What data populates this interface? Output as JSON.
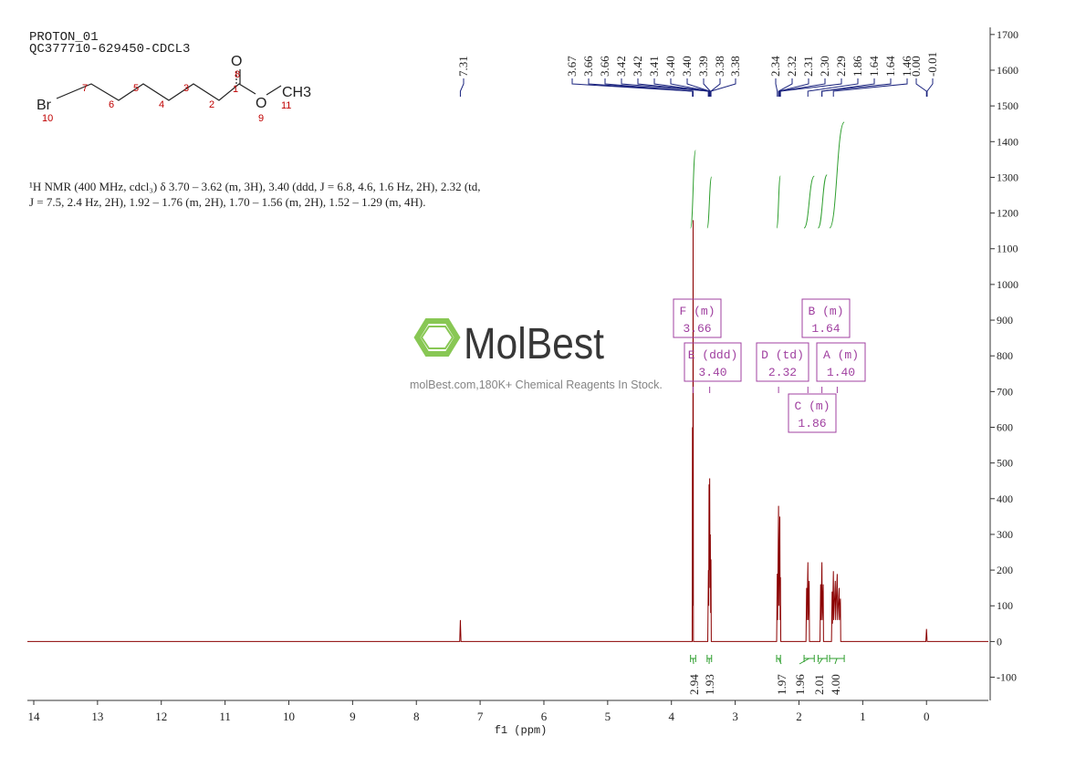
{
  "header": {
    "title": "PROTON_01",
    "sample": "QC377710-629450-CDCL3"
  },
  "structure": {
    "atoms": [
      "Br",
      "10",
      "7",
      "6",
      "5",
      "4",
      "3",
      "2",
      "1",
      "O",
      "8",
      "O",
      "9",
      "CH3",
      "11"
    ]
  },
  "description": [
    "¹H NMR (400 MHz, cdcl₃) δ 3.70 – 3.62 (m, 3H), 3.40 (ddd, J = 6.8, 4.6, 1.6 Hz, 2H), 2.32 (td,",
    "J = 7.5, 2.4 Hz, 2H), 1.92 – 1.76 (m, 2H), 1.70 – 1.56 (m, 2H), 1.52 – 1.29 (m, 4H)."
  ],
  "watermark": {
    "brand": "MolBest",
    "tagline": "molBest.com,180K+ Chemical Reagents In Stock."
  },
  "chart_data": {
    "type": "line",
    "x_label": "f1 (ppm)",
    "xlim": [
      14.1,
      -0.97
    ],
    "ylim": [
      -165,
      1720
    ],
    "xticks": [
      14,
      13,
      12,
      11,
      10,
      9,
      8,
      7,
      6,
      5,
      4,
      3,
      2,
      1,
      0
    ],
    "yticks": [
      -100,
      0,
      100,
      200,
      300,
      400,
      500,
      600,
      700,
      800,
      900,
      1000,
      1100,
      1200,
      1300,
      1400,
      1500,
      1600,
      1700
    ],
    "series": [
      {
        "color": "#8b0000",
        "x": [
          14.1,
          7.32,
          7.31,
          7.3,
          3.675,
          3.67,
          3.665,
          3.66,
          3.655,
          3.43,
          3.42,
          3.415,
          3.41,
          3.405,
          3.4,
          3.395,
          3.39,
          3.385,
          3.38,
          3.375,
          2.35,
          2.34,
          2.335,
          2.32,
          2.315,
          2.3,
          2.295,
          2.29,
          2.285,
          1.89,
          1.88,
          1.875,
          1.86,
          1.855,
          1.84,
          1.835,
          1.67,
          1.66,
          1.655,
          1.64,
          1.635,
          1.62,
          1.615,
          1.49,
          1.48,
          1.475,
          1.46,
          1.455,
          1.43,
          1.425,
          1.4,
          1.395,
          1.37,
          1.365,
          1.35,
          1.345,
          0.01,
          0,
          -0.01,
          -0.97
        ],
        "values": [
          0,
          0,
          60,
          0,
          0,
          600,
          100,
          1180,
          0,
          0,
          200,
          100,
          440,
          200,
          457,
          150,
          300,
          80,
          230,
          0,
          0,
          190,
          60,
          380,
          100,
          350,
          60,
          180,
          0,
          0,
          150,
          60,
          222,
          60,
          170,
          0,
          0,
          160,
          60,
          222,
          60,
          160,
          0,
          0,
          140,
          50,
          197,
          60,
          170,
          60,
          189,
          60,
          150,
          60,
          120,
          0,
          0,
          35,
          0,
          0
        ]
      }
    ],
    "peak_labels": [
      7.31,
      3.67,
      3.66,
      3.66,
      3.42,
      3.42,
      3.41,
      {
        "value": 3.4,
        "label": "3.40"
      },
      {
        "value": 3.4,
        "label": "3.40"
      },
      3.39,
      3.38,
      3.38,
      2.34,
      2.32,
      2.31,
      {
        "value": 2.3,
        "label": "2.30"
      },
      2.29,
      1.86,
      1.64,
      1.64,
      1.46,
      {
        "value": 0,
        "label": "0.00"
      },
      -0.01
    ],
    "multiplets": [
      {
        "label": "F (m)",
        "shift": 3.66
      },
      {
        "label": "E (ddd)",
        "shift": {
          "value": 3.4,
          "label": "3.40"
        }
      },
      {
        "label": "D (td)",
        "shift": 2.32
      },
      {
        "label": "A (m)",
        "shift": {
          "value": 1.4,
          "label": "1.40"
        }
      },
      {
        "label": "B (m)",
        "shift": 1.64
      },
      {
        "label": "C (m)",
        "shift": 1.86
      }
    ],
    "integrals": [
      {
        "range": [
          3.7,
          3.62
        ],
        "value": 2.94
      },
      {
        "range": [
          3.44,
          3.37
        ],
        "value": 1.93
      },
      {
        "range": [
          2.35,
          2.29
        ],
        "value": 1.97
      },
      {
        "range": [
          1.92,
          1.76
        ],
        "value": 1.96
      },
      {
        "range": [
          1.7,
          1.56
        ],
        "value": 2.01
      },
      {
        "range": [
          1.52,
          1.29
        ],
        "value": {
          "value": 4,
          "label": "4.00"
        }
      }
    ]
  }
}
